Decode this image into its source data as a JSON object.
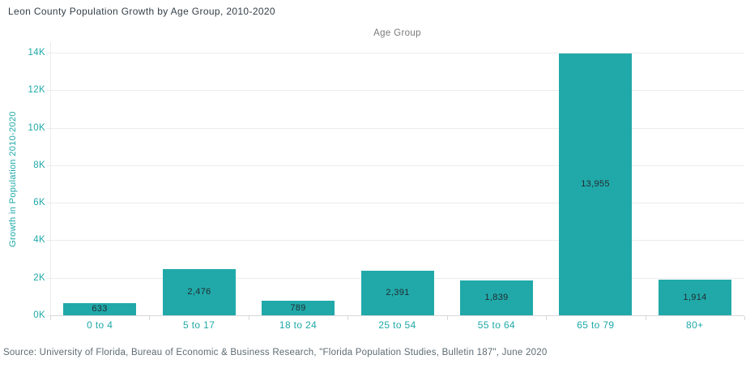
{
  "header": {
    "title": "Leon County Population Growth by Age Group, 2010-2020"
  },
  "chart_data": {
    "type": "bar",
    "xlabel": "Age Group",
    "ylabel": "Growth in Population 2010-2020",
    "categories": [
      "0 to 4",
      "5 to 17",
      "18 to 24",
      "25 to 54",
      "55 to 64",
      "65 to 79",
      "80+"
    ],
    "values": [
      633,
      2476,
      789,
      2391,
      1839,
      13955,
      1914
    ],
    "value_labels": [
      "633",
      "2,476",
      "789",
      "2,391",
      "1,839",
      "13,955",
      "1,914"
    ],
    "ylim": [
      0,
      14000
    ],
    "ytick_step": 2000,
    "ytick_labels": [
      "0K",
      "2K",
      "4K",
      "6K",
      "8K",
      "10K",
      "12K",
      "14K"
    ],
    "grid": true,
    "legend": "none",
    "value_labels_position": "inside-center"
  },
  "colors": {
    "bar_fill": "#21A9A9",
    "axis_text": "#1FA8A8",
    "title_text": "#333F48",
    "xaxis_title_text": "#7A7A7A",
    "value_label_text": "#202C32",
    "gridline": "#ECECEC",
    "axis_line": "#D9D9D9",
    "source_text": "#5D6B73",
    "background": "#FFFFFF"
  },
  "footer": {
    "source": "Source: University of Florida, Bureau of Economic & Business Research, \"Florida Population Studies, Bulletin 187\", June 2020"
  }
}
